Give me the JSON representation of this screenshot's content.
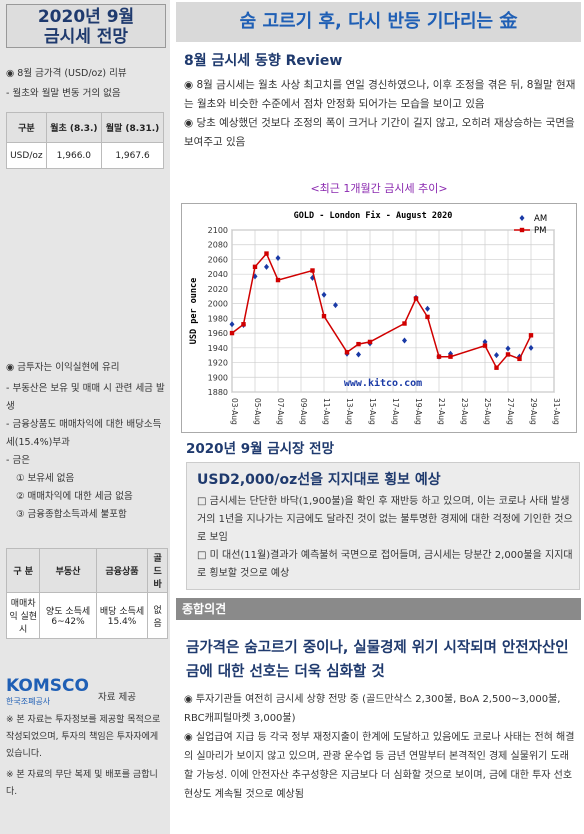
{
  "sidebar": {
    "title_line1": "2020년 9월",
    "title_line2": "금시세 전망",
    "price_header": "◉ 8월 금가격 (USD/oz) 리뷰",
    "price_sub": "- 월초와 월말 변동 거의 없음",
    "price_table": {
      "headers": [
        "구분",
        "월초 (8.3.)",
        "월말 (8.31.)"
      ],
      "row": [
        "USD/oz",
        "1,966.0",
        "1,967.6"
      ]
    },
    "tax_header": "◉ 금투자는 이익실현에 유리",
    "tax_items": [
      "- 부동산은 보유 및 매매 시 관련 세금 발생",
      "- 금융상품도 매매차익에 대한 배당소득세(15.4%)부과",
      "- 금은",
      "① 보유세 없음",
      "② 매매차익에 대한 세금 없음",
      "③ 금융종합소득과세 불포함"
    ],
    "tax_table": {
      "headers": [
        "구 분",
        "부동산",
        "금융상품",
        "골드바"
      ],
      "row": [
        "매매차익 실현시",
        "양도 소득세 6~42%",
        "배당 소득세 15.4%",
        "없음"
      ]
    },
    "logo_text": "KOMSCO",
    "logo_sub": "한국조폐공사",
    "provided": "자료 제공",
    "notes": [
      "※ 본 자료는 투자정보를 제공할 목적으로 작성되었으며, 투자의 책임은 투자자에게 있습니다.",
      "※ 본 자료의 무단 복제 및 배포를 금합니다."
    ]
  },
  "banner": "숨 고르기 후, 다시 반등 기다리는 金",
  "review": {
    "heading": "8월 금시세 동향 Review",
    "bullets": [
      "◉ 8월 금시세는 월초 사상 최고치를 연일 경신하였으나, 이후 조정을 겪은 뒤, 8월말 현재는 월초와 비슷한 수준에서 점차 안정화 되어가는 모습을 보이고 있음",
      "◉ 당초 예상했던 것보다 조정의 폭이 크거나 기간이 길지 않고, 오히려 재상승하는 국면을 보여주고 있음"
    ],
    "chart_caption": "<최근 1개월간 금시세 추이>"
  },
  "chart_data": {
    "type": "line",
    "title": "GOLD - London Fix - August 2020",
    "ylabel": "USD per ounce",
    "ylim": [
      1880,
      2100
    ],
    "yticks": [
      1880,
      1900,
      1920,
      1940,
      1960,
      1980,
      2000,
      2020,
      2040,
      2060,
      2080,
      2100
    ],
    "categories": [
      "03-Aug",
      "05-Aug",
      "07-Aug",
      "09-Aug",
      "11-Aug",
      "13-Aug",
      "15-Aug",
      "17-Aug",
      "19-Aug",
      "21-Aug",
      "23-Aug",
      "25-Aug",
      "27-Aug",
      "29-Aug",
      "31-Aug"
    ],
    "watermark": "www.kitco.com",
    "series": [
      {
        "name": "AM",
        "color": "#1a3aa6",
        "marker": "diamond",
        "line": false,
        "points": [
          [
            0,
            1972
          ],
          [
            0.5,
            1971
          ],
          [
            1,
            2037
          ],
          [
            1.5,
            2050
          ],
          [
            2,
            2062
          ],
          [
            3.5,
            2035
          ],
          [
            4,
            2012
          ],
          [
            4.5,
            1998
          ],
          [
            5,
            1932
          ],
          [
            5.5,
            1931
          ],
          [
            6,
            1946
          ],
          [
            7.5,
            1950
          ],
          [
            8,
            2008
          ],
          [
            8.5,
            1993
          ],
          [
            9,
            1928
          ],
          [
            9.5,
            1932
          ],
          [
            11,
            1948
          ],
          [
            11.5,
            1930
          ],
          [
            12,
            1939
          ],
          [
            12.5,
            1928
          ],
          [
            13,
            1940
          ]
        ]
      },
      {
        "name": "PM",
        "color": "#d00000",
        "marker": "square",
        "line": true,
        "points": [
          [
            0,
            1960
          ],
          [
            0.5,
            1972
          ],
          [
            1,
            2050
          ],
          [
            1.5,
            2068
          ],
          [
            2,
            2032
          ],
          [
            3.5,
            2045
          ],
          [
            4,
            1983
          ],
          [
            5,
            1934
          ],
          [
            5.5,
            1945
          ],
          [
            6,
            1948
          ],
          [
            7.5,
            1973
          ],
          [
            8,
            2007
          ],
          [
            8.5,
            1982
          ],
          [
            9,
            1928
          ],
          [
            9.5,
            1928
          ],
          [
            11,
            1943
          ],
          [
            11.5,
            1913
          ],
          [
            12,
            1931
          ],
          [
            12.5,
            1925
          ],
          [
            13,
            1957
          ]
        ]
      }
    ]
  },
  "outlook": {
    "heading": "2020년 9월 금시장 전망",
    "panel_title": "USD2,000/oz선을 지지대로 횡보 예상",
    "items": [
      "□ 금시세는 단단한 바닥(1,900불)을 확인 후 재반등 하고 있으며, 이는 코로나 사태 발생 거의 1년을 지나가는 지금에도 달라진 것이 없는 불투명한 경제에 대한 걱정에 기인한 것으로 보임",
      "□ 미 대선(11월)결과가 예측불허 국면으로 접어들며, 금시세는 당분간 2,000불을 지지대로 횡보할 것으로 예상"
    ]
  },
  "opinion": {
    "bar_label": "종합의견",
    "headline": "금가격은 숨고르기 중이나, 실물경제 위기 시작되며 안전자산인 금에 대한 선호는 더욱 심화할 것",
    "bullets": [
      "◉ 투자기관들 여전히 금시세 상향 전망 중 (골드만삭스 2,300불, BoA 2,500~3,000불, RBC캐피털마켓 3,000불)",
      "◉ 실업급여 지급 등 각국 정부 재정지출이 한계에 도달하고 있음에도 코로나 사태는 전혀 해결의 실마리가 보이지 않고 있으며, 관광 운수업 등 금년 연말부터 본격적인 경제 실물위기 도래할 가능성. 이에 안전자산 추구성향은 지금보다 더 심화할 것으로 보이며, 금에 대한 투자 선호현상도 계속될 것으로 예상됨"
    ]
  }
}
